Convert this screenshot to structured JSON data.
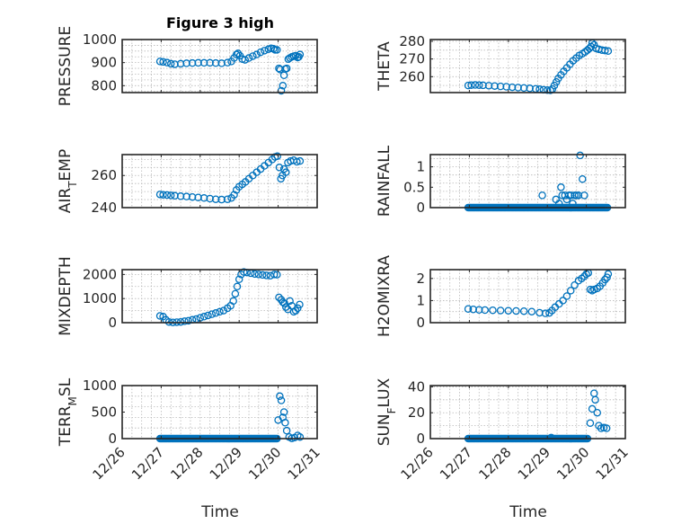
{
  "figure": {
    "title": "Figure 3 high",
    "xlabel": "Time"
  },
  "chart_data": [
    {
      "type": "scatter",
      "ylabel": "PRESSURE",
      "ylabel_sub": "",
      "title": "Figure 3 high",
      "xlim": [
        26,
        31
      ],
      "xticks": [
        "12/26",
        "12/27",
        "12/28",
        "12/29",
        "12/30",
        "12/31"
      ],
      "ylim": [
        770,
        1000
      ],
      "yticks": [
        800,
        900,
        1000
      ],
      "ygrid": [
        775,
        800,
        825,
        850,
        875,
        900,
        925,
        950,
        975,
        1000
      ],
      "color": "#0072BD",
      "points": [
        [
          26.97,
          905
        ],
        [
          27.05,
          903
        ],
        [
          27.15,
          900
        ],
        [
          27.25,
          895
        ],
        [
          27.35,
          893
        ],
        [
          27.5,
          895
        ],
        [
          27.65,
          897
        ],
        [
          27.8,
          898
        ],
        [
          27.95,
          899
        ],
        [
          28.1,
          899
        ],
        [
          28.25,
          899
        ],
        [
          28.4,
          898
        ],
        [
          28.55,
          897
        ],
        [
          28.7,
          900
        ],
        [
          28.8,
          905
        ],
        [
          28.87,
          920
        ],
        [
          28.93,
          935
        ],
        [
          28.97,
          940
        ],
        [
          29.02,
          930
        ],
        [
          29.08,
          915
        ],
        [
          29.15,
          912
        ],
        [
          29.25,
          920
        ],
        [
          29.35,
          928
        ],
        [
          29.45,
          935
        ],
        [
          29.55,
          945
        ],
        [
          29.65,
          952
        ],
        [
          29.75,
          958
        ],
        [
          29.82,
          962
        ],
        [
          29.88,
          960
        ],
        [
          29.92,
          955
        ],
        [
          29.97,
          955
        ],
        [
          30.02,
          875
        ],
        [
          30.05,
          870
        ],
        [
          30.08,
          778
        ],
        [
          30.12,
          800
        ],
        [
          30.15,
          845
        ],
        [
          30.18,
          872
        ],
        [
          30.22,
          875
        ],
        [
          30.26,
          915
        ],
        [
          30.3,
          920
        ],
        [
          30.35,
          925
        ],
        [
          30.4,
          928
        ],
        [
          30.45,
          930
        ],
        [
          30.5,
          922
        ],
        [
          30.53,
          925
        ],
        [
          30.56,
          935
        ]
      ]
    },
    {
      "type": "scatter",
      "ylabel": "THETA",
      "ylabel_sub": "",
      "xlim": [
        26,
        31
      ],
      "xticks": [
        "12/26",
        "12/27",
        "12/28",
        "12/29",
        "12/30",
        "12/31"
      ],
      "ylim": [
        251,
        281
      ],
      "yticks": [
        260,
        270,
        280
      ],
      "ygrid": [
        255,
        260,
        265,
        270,
        275,
        280
      ],
      "color": "#0072BD",
      "points": [
        [
          26.97,
          255
        ],
        [
          27.05,
          255.2
        ],
        [
          27.15,
          255.3
        ],
        [
          27.25,
          255.2
        ],
        [
          27.35,
          255.1
        ],
        [
          27.5,
          254.9
        ],
        [
          27.65,
          254.7
        ],
        [
          27.8,
          254.5
        ],
        [
          27.95,
          254.3
        ],
        [
          28.1,
          254
        ],
        [
          28.25,
          253.8
        ],
        [
          28.4,
          253.6
        ],
        [
          28.55,
          253.4
        ],
        [
          28.7,
          253.1
        ],
        [
          28.8,
          252.9
        ],
        [
          28.9,
          252.6
        ],
        [
          29.0,
          252.4
        ],
        [
          29.08,
          252.3
        ],
        [
          29.13,
          253
        ],
        [
          29.18,
          255
        ],
        [
          29.23,
          257
        ],
        [
          29.28,
          259
        ],
        [
          29.35,
          261
        ],
        [
          29.42,
          263
        ],
        [
          29.5,
          265
        ],
        [
          29.58,
          267
        ],
        [
          29.66,
          269
        ],
        [
          29.74,
          270.5
        ],
        [
          29.82,
          272
        ],
        [
          29.9,
          273
        ],
        [
          29.97,
          274
        ],
        [
          30.03,
          275
        ],
        [
          30.08,
          276
        ],
        [
          30.12,
          277
        ],
        [
          30.15,
          279
        ],
        [
          30.2,
          278
        ],
        [
          30.25,
          276
        ],
        [
          30.32,
          275.5
        ],
        [
          30.4,
          275
        ],
        [
          30.48,
          274.8
        ],
        [
          30.56,
          274.5
        ]
      ]
    },
    {
      "type": "scatter",
      "ylabel": "AIR",
      "ylabel_sub": "T",
      "ylabel_tail": "EMP",
      "xlim": [
        26,
        31
      ],
      "xticks": [
        "12/26",
        "12/27",
        "12/28",
        "12/29",
        "12/30",
        "12/31"
      ],
      "ylim": [
        240,
        273
      ],
      "yticks": [
        240,
        260
      ],
      "ygrid": [
        245,
        250,
        255,
        260,
        265,
        270
      ],
      "color": "#0072BD",
      "points": [
        [
          26.97,
          248.2
        ],
        [
          27.05,
          248.0
        ],
        [
          27.15,
          247.8
        ],
        [
          27.25,
          247.6
        ],
        [
          27.35,
          247.4
        ],
        [
          27.5,
          247.1
        ],
        [
          27.65,
          246.9
        ],
        [
          27.8,
          246.6
        ],
        [
          27.95,
          246.3
        ],
        [
          28.1,
          246
        ],
        [
          28.25,
          245.6
        ],
        [
          28.4,
          245.2
        ],
        [
          28.55,
          245
        ],
        [
          28.7,
          245.2
        ],
        [
          28.8,
          246
        ],
        [
          28.87,
          248
        ],
        [
          28.93,
          251
        ],
        [
          29.0,
          253
        ],
        [
          29.08,
          254.5
        ],
        [
          29.16,
          256
        ],
        [
          29.25,
          258
        ],
        [
          29.35,
          260
        ],
        [
          29.45,
          262
        ],
        [
          29.55,
          264
        ],
        [
          29.65,
          266
        ],
        [
          29.75,
          268
        ],
        [
          29.85,
          270
        ],
        [
          29.92,
          271.5
        ],
        [
          29.98,
          272
        ],
        [
          30.03,
          265
        ],
        [
          30.07,
          258
        ],
        [
          30.11,
          260
        ],
        [
          30.15,
          264
        ],
        [
          30.2,
          262
        ],
        [
          30.25,
          268
        ],
        [
          30.32,
          269
        ],
        [
          30.4,
          269.5
        ],
        [
          30.48,
          268.5
        ],
        [
          30.56,
          269
        ]
      ]
    },
    {
      "type": "scatter",
      "ylabel": "RAINFALL",
      "ylabel_sub": "",
      "xlim": [
        26,
        31
      ],
      "xticks": [
        "12/26",
        "12/27",
        "12/28",
        "12/29",
        "12/30",
        "12/31"
      ],
      "ylim": [
        0,
        1.3
      ],
      "yticks": [
        0,
        0.5,
        1
      ],
      "ygrid": [
        0.2,
        0.4,
        0.6,
        0.8,
        1.0,
        1.2
      ],
      "color": "#0072BD",
      "baseline": {
        "from": 26.97,
        "to": 30.56,
        "value": 0
      },
      "points": [
        [
          28.87,
          0.3
        ],
        [
          29.22,
          0.2
        ],
        [
          29.3,
          0.1
        ],
        [
          29.35,
          0.5
        ],
        [
          29.38,
          0.3
        ],
        [
          29.45,
          0.3
        ],
        [
          29.5,
          0.2
        ],
        [
          29.55,
          0.3
        ],
        [
          29.6,
          0.3
        ],
        [
          29.65,
          0.1
        ],
        [
          29.7,
          0.3
        ],
        [
          29.75,
          0.3
        ],
        [
          29.8,
          0.3
        ],
        [
          29.84,
          1.28
        ],
        [
          29.9,
          0.7
        ],
        [
          29.95,
          0.3
        ]
      ]
    },
    {
      "type": "scatter",
      "ylabel": "MIXDEPTH",
      "ylabel_sub": "",
      "xlim": [
        26,
        31
      ],
      "xticks": [
        "12/26",
        "12/27",
        "12/28",
        "12/29",
        "12/30",
        "12/31"
      ],
      "ylim": [
        0,
        2200
      ],
      "yticks": [
        0,
        1000,
        2000
      ],
      "ygrid": [
        500,
        1000,
        1500,
        2000
      ],
      "color": "#0072BD",
      "points": [
        [
          26.97,
          280
        ],
        [
          27.05,
          250
        ],
        [
          27.12,
          120
        ],
        [
          27.2,
          30
        ],
        [
          27.3,
          10
        ],
        [
          27.4,
          20
        ],
        [
          27.5,
          30
        ],
        [
          27.6,
          60
        ],
        [
          27.7,
          80
        ],
        [
          27.8,
          120
        ],
        [
          27.9,
          150
        ],
        [
          28.0,
          200
        ],
        [
          28.1,
          250
        ],
        [
          28.2,
          300
        ],
        [
          28.3,
          350
        ],
        [
          28.4,
          400
        ],
        [
          28.5,
          450
        ],
        [
          28.6,
          500
        ],
        [
          28.7,
          600
        ],
        [
          28.78,
          700
        ],
        [
          28.85,
          900
        ],
        [
          28.9,
          1200
        ],
        [
          28.95,
          1500
        ],
        [
          29.0,
          1800
        ],
        [
          29.05,
          2000
        ],
        [
          29.12,
          2100
        ],
        [
          29.2,
          2080
        ],
        [
          29.3,
          2050
        ],
        [
          29.4,
          2020
        ],
        [
          29.5,
          2000
        ],
        [
          29.6,
          1980
        ],
        [
          29.7,
          1960
        ],
        [
          29.8,
          1950
        ],
        [
          29.9,
          2000
        ],
        [
          29.97,
          1990
        ],
        [
          30.02,
          1050
        ],
        [
          30.08,
          950
        ],
        [
          30.12,
          850
        ],
        [
          30.16,
          800
        ],
        [
          30.2,
          650
        ],
        [
          30.25,
          550
        ],
        [
          30.3,
          900
        ],
        [
          30.35,
          700
        ],
        [
          30.4,
          450
        ],
        [
          30.45,
          500
        ],
        [
          30.5,
          600
        ],
        [
          30.55,
          750
        ]
      ]
    },
    {
      "type": "scatter",
      "ylabel": "H2OMIXRA",
      "ylabel_sub": "",
      "xlim": [
        26,
        31
      ],
      "xticks": [
        "12/26",
        "12/27",
        "12/28",
        "12/29",
        "12/30",
        "12/31"
      ],
      "ylim": [
        0,
        2.4
      ],
      "yticks": [
        0,
        1,
        2
      ],
      "ygrid": [
        0.5,
        1.0,
        1.5,
        2.0
      ],
      "color": "#0072BD",
      "points": [
        [
          26.97,
          0.62
        ],
        [
          27.1,
          0.6
        ],
        [
          27.25,
          0.58
        ],
        [
          27.4,
          0.57
        ],
        [
          27.6,
          0.56
        ],
        [
          27.8,
          0.55
        ],
        [
          28.0,
          0.54
        ],
        [
          28.2,
          0.53
        ],
        [
          28.4,
          0.52
        ],
        [
          28.6,
          0.5
        ],
        [
          28.8,
          0.45
        ],
        [
          28.95,
          0.42
        ],
        [
          29.05,
          0.44
        ],
        [
          29.12,
          0.55
        ],
        [
          29.2,
          0.7
        ],
        [
          29.3,
          0.85
        ],
        [
          29.4,
          1.0
        ],
        [
          29.5,
          1.2
        ],
        [
          29.6,
          1.45
        ],
        [
          29.7,
          1.7
        ],
        [
          29.8,
          1.9
        ],
        [
          29.88,
          2.0
        ],
        [
          29.95,
          2.1
        ],
        [
          30.0,
          2.2
        ],
        [
          30.05,
          2.25
        ],
        [
          30.1,
          1.5
        ],
        [
          30.15,
          1.45
        ],
        [
          30.2,
          1.5
        ],
        [
          30.28,
          1.55
        ],
        [
          30.35,
          1.65
        ],
        [
          30.42,
          1.8
        ],
        [
          30.48,
          1.95
        ],
        [
          30.53,
          2.05
        ],
        [
          30.56,
          2.2
        ]
      ]
    },
    {
      "type": "scatter",
      "ylabel": "TERR",
      "ylabel_sub": "M",
      "ylabel_tail": "SL",
      "xlim": [
        26,
        31
      ],
      "xticks": [
        "12/26",
        "12/27",
        "12/28",
        "12/29",
        "12/30",
        "12/31"
      ],
      "ylim": [
        0,
        1000
      ],
      "yticks": [
        0,
        500,
        1000
      ],
      "ygrid": [
        200,
        400,
        600,
        800,
        1000
      ],
      "color": "#0072BD",
      "baseline": {
        "from": 26.97,
        "to": 29.98,
        "value": 0
      },
      "points": [
        [
          30.0,
          350
        ],
        [
          30.04,
          800
        ],
        [
          30.08,
          720
        ],
        [
          30.12,
          400
        ],
        [
          30.15,
          500
        ],
        [
          30.18,
          300
        ],
        [
          30.22,
          150
        ],
        [
          30.28,
          30
        ],
        [
          30.35,
          5
        ],
        [
          30.42,
          20
        ],
        [
          30.5,
          60
        ],
        [
          30.56,
          30
        ]
      ]
    },
    {
      "type": "scatter",
      "ylabel": "SUN",
      "ylabel_sub": "F",
      "ylabel_tail": "LUX",
      "xlim": [
        26,
        31
      ],
      "xticks": [
        "12/26",
        "12/27",
        "12/28",
        "12/29",
        "12/30",
        "12/31"
      ],
      "ylim": [
        0,
        41
      ],
      "yticks": [
        0,
        20,
        40
      ],
      "ygrid": [
        10,
        20,
        30,
        40
      ],
      "color": "#0072BD",
      "baseline": {
        "from": 26.97,
        "to": 30.05,
        "value": 0
      },
      "points": [
        [
          29.1,
          0.8
        ],
        [
          30.1,
          12
        ],
        [
          30.15,
          23
        ],
        [
          30.2,
          35
        ],
        [
          30.23,
          30
        ],
        [
          30.28,
          20
        ],
        [
          30.32,
          10
        ],
        [
          30.38,
          8
        ],
        [
          30.45,
          8.5
        ],
        [
          30.52,
          8
        ]
      ]
    }
  ]
}
